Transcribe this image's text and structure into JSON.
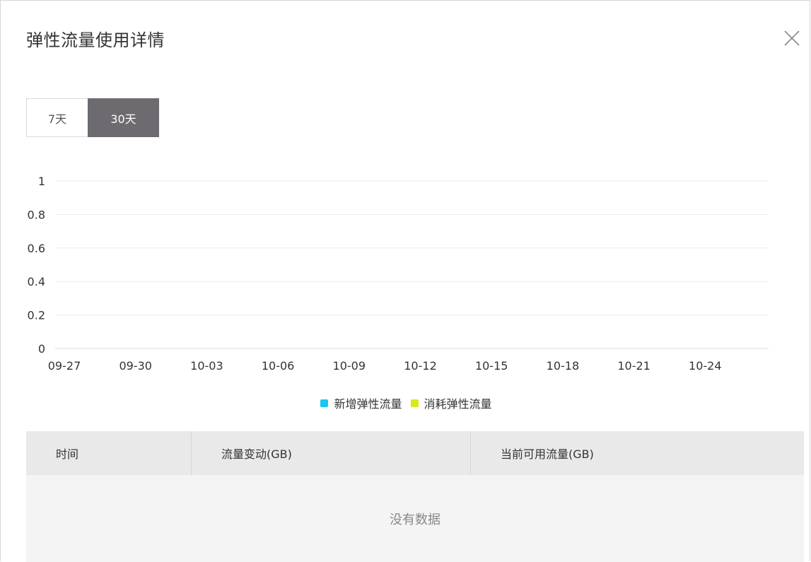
{
  "dialog": {
    "title": "弹性流量使用详情"
  },
  "tabs": [
    {
      "label": "7天",
      "active": false
    },
    {
      "label": "30天",
      "active": true
    }
  ],
  "chart_data": {
    "type": "line",
    "title": "",
    "xlabel": "",
    "ylabel": "",
    "ylim": [
      0,
      1
    ],
    "y_ticks": [
      "0",
      "0.2",
      "0.4",
      "0.6",
      "0.8",
      "1"
    ],
    "x_ticks": [
      "09-27",
      "09-30",
      "10-03",
      "10-06",
      "10-09",
      "10-12",
      "10-15",
      "10-18",
      "10-21",
      "10-24"
    ],
    "grid": true,
    "legend_position": "bottom",
    "series": [
      {
        "name": "新增弹性流量",
        "color": "#1cc5ef",
        "values": []
      },
      {
        "name": "消耗弹性流量",
        "color": "#d6ea1a",
        "values": []
      }
    ]
  },
  "table": {
    "columns": [
      "时间",
      "流量变动(GB)",
      "当前可用流量(GB)"
    ],
    "rows": [],
    "empty_text": "没有数据"
  }
}
